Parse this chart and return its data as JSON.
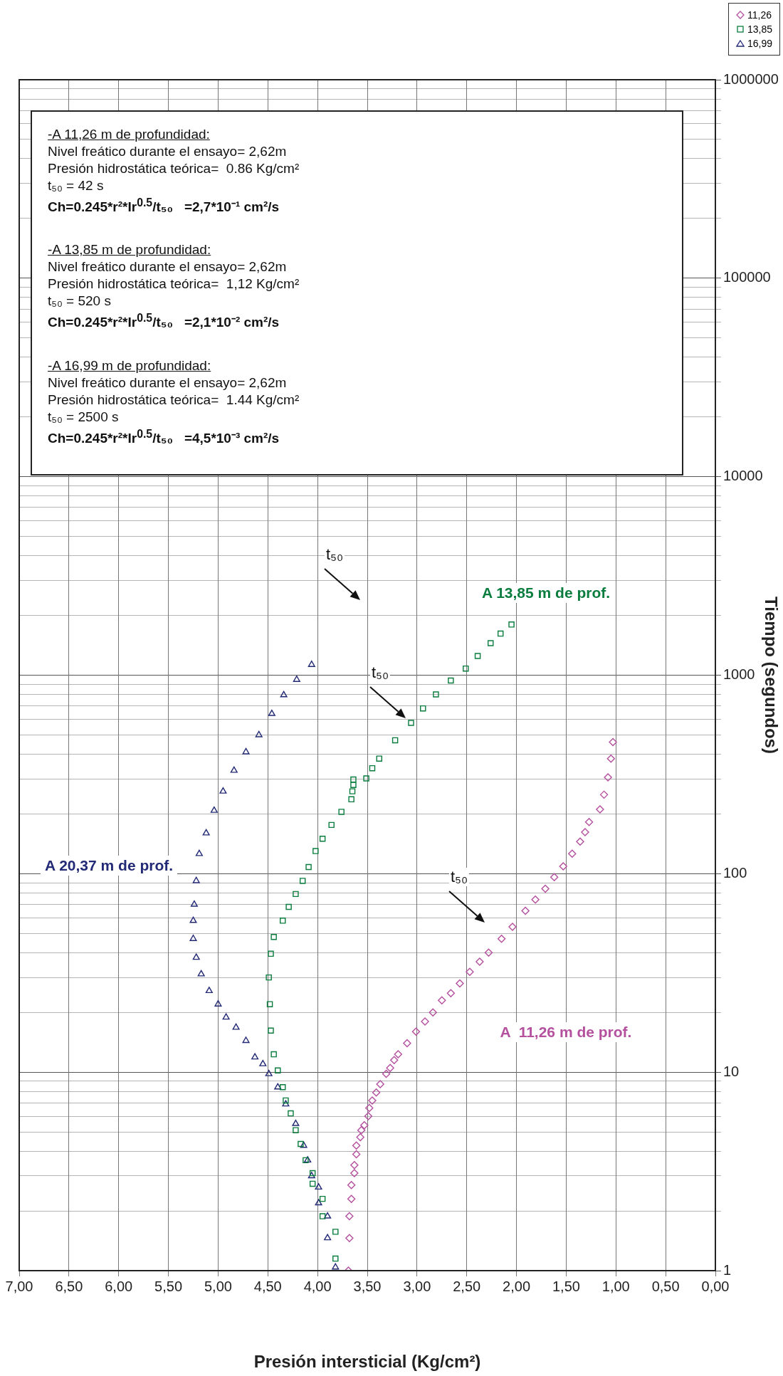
{
  "chart_data": {
    "type": "scatter",
    "xlabel": "Presión intersticial (Kg/cm²)",
    "ylabel": "Tiempo (segundos)",
    "log": "y",
    "xlim": [
      7,
      0
    ],
    "ylim": [
      1,
      1000000
    ],
    "xticks": [
      {
        "value": 0,
        "label": "0,00"
      },
      {
        "value": 0.5,
        "label": "0,50"
      },
      {
        "value": 1,
        "label": "1,00"
      },
      {
        "value": 1.5,
        "label": "1,50"
      },
      {
        "value": 2,
        "label": "2,00"
      },
      {
        "value": 2.5,
        "label": "2,50"
      },
      {
        "value": 3,
        "label": "3,00"
      },
      {
        "value": 3.5,
        "label": "3,50"
      },
      {
        "value": 4,
        "label": "4,00"
      },
      {
        "value": 4.5,
        "label": "4,50"
      },
      {
        "value": 5,
        "label": "5,00"
      },
      {
        "value": 5.5,
        "label": "5,50"
      },
      {
        "value": 6,
        "label": "6,00"
      },
      {
        "value": 6.5,
        "label": "6,50"
      },
      {
        "value": 7,
        "label": "7,00"
      }
    ],
    "yticks": [
      1,
      {
        "value": 2,
        "label": null
      },
      {
        "value": 3,
        "label": null
      },
      {
        "value": 4,
        "label": null
      },
      {
        "value": 5,
        "label": null
      },
      {
        "value": 6,
        "label": null
      },
      {
        "value": 7,
        "label": null
      },
      {
        "value": 8,
        "label": null
      },
      {
        "value": 9,
        "label": null
      },
      10,
      {
        "value": 20,
        "label": null
      },
      {
        "value": 30,
        "label": null
      },
      {
        "value": 40,
        "label": null
      },
      {
        "value": 50,
        "label": null
      },
      {
        "value": 60,
        "label": null
      },
      {
        "value": 70,
        "label": null
      },
      {
        "value": 80,
        "label": null
      },
      {
        "value": 90,
        "label": null
      },
      100,
      {
        "value": 200,
        "label": null
      },
      {
        "value": 300,
        "label": null
      },
      {
        "value": 400,
        "label": null
      },
      {
        "value": 500,
        "label": null
      },
      {
        "value": 600,
        "label": null
      },
      {
        "value": 700,
        "label": null
      },
      {
        "value": 800,
        "label": null
      },
      {
        "value": 900,
        "label": null
      },
      1000,
      {
        "value": 2000,
        "label": null
      },
      {
        "value": 3000,
        "label": null
      },
      {
        "value": 4000,
        "label": null
      },
      {
        "value": 5000,
        "label": null
      },
      {
        "value": 6000,
        "label": null
      },
      {
        "value": 7000,
        "label": null
      },
      {
        "value": 8000,
        "label": null
      },
      {
        "value": 9000,
        "label": null
      },
      10000,
      {
        "value": 20000,
        "label": null
      },
      {
        "value": 30000,
        "label": null
      },
      {
        "value": 40000,
        "label": null
      },
      {
        "value": 50000,
        "label": null
      },
      {
        "value": 60000,
        "label": null
      },
      {
        "value": 70000,
        "label": null
      },
      {
        "value": 80000,
        "label": null
      },
      {
        "value": 90000,
        "label": null
      },
      100000,
      {
        "value": 200000,
        "label": null
      },
      {
        "value": 300000,
        "label": null
      },
      {
        "value": 400000,
        "label": null
      },
      {
        "value": 500000,
        "label": null
      },
      {
        "value": 600000,
        "label": null
      },
      {
        "value": 700000,
        "label": null
      },
      {
        "value": 800000,
        "label": null
      },
      {
        "value": 900000,
        "label": null
      },
      1000000
    ],
    "grid": true,
    "legend": "top right",
    "series": [
      {
        "name": "11,26",
        "color": "#b4509e",
        "marker": "diamond",
        "x": [
          3.69,
          3.68,
          3.68,
          3.66,
          3.66,
          3.63,
          3.63,
          3.61,
          3.61,
          3.57,
          3.56,
          3.53,
          3.49,
          3.48,
          3.45,
          3.41,
          3.37,
          3.31,
          3.27,
          3.23,
          3.19,
          3.1,
          3.01,
          2.92,
          2.84,
          2.75,
          2.66,
          2.57,
          2.47,
          2.37,
          2.28,
          2.15,
          2.04,
          1.91,
          1.81,
          1.71,
          1.62,
          1.53,
          1.44,
          1.36,
          1.31,
          1.27,
          1.16,
          1.12,
          1.08,
          1.05,
          1.03
        ],
        "values": [
          1,
          1.46,
          1.88,
          2.3,
          2.7,
          3.1,
          3.4,
          3.86,
          4.27,
          4.7,
          5.1,
          5.4,
          6,
          6.6,
          7.2,
          7.9,
          8.7,
          9.8,
          10.5,
          11.5,
          12.3,
          14,
          16,
          18,
          20,
          23,
          25,
          28,
          32,
          36,
          40,
          47,
          54,
          65,
          74,
          84,
          96,
          109,
          126,
          145,
          162,
          182,
          211,
          250,
          306,
          380,
          460
        ]
      },
      {
        "name": "13,85",
        "color": "#0a7d3e",
        "marker": "square",
        "x": [
          3.82,
          3.82,
          3.95,
          3.95,
          4.05,
          4.05,
          4.12,
          4.17,
          4.22,
          4.27,
          4.32,
          4.35,
          4.4,
          4.44,
          4.47,
          4.48,
          4.49,
          4.47,
          4.44,
          4.35,
          4.29,
          4.22,
          4.15,
          4.09,
          4.02,
          3.95,
          3.86,
          3.76,
          3.66,
          3.65,
          3.64,
          3.64,
          3.51,
          3.45,
          3.38,
          3.22,
          3.06,
          2.94,
          2.81,
          2.66,
          2.51,
          2.39,
          2.26,
          2.16,
          2.05
        ],
        "values": [
          1.15,
          1.57,
          1.88,
          2.3,
          2.74,
          3.1,
          3.6,
          4.35,
          5.1,
          6.2,
          7.2,
          8.4,
          10.2,
          12.3,
          16.2,
          22,
          30,
          39.5,
          48,
          58,
          68,
          79,
          92,
          108,
          130,
          150,
          176,
          205,
          237,
          260,
          280,
          298,
          302,
          340,
          380,
          470,
          575,
          680,
          800,
          940,
          1080,
          1250,
          1450,
          1620,
          1800
        ]
      },
      {
        "name": "16,99",
        "color": "#232a75",
        "marker": "triangle",
        "x": [
          3.82,
          3.9,
          3.9,
          3.99,
          3.99,
          4.06,
          4.1,
          4.14,
          4.22,
          4.32,
          4.4,
          4.49,
          4.55,
          4.63,
          4.72,
          4.82,
          4.92,
          5,
          5.09,
          5.17,
          5.22,
          5.25,
          5.25,
          5.24,
          5.22,
          5.19,
          5.12,
          5.04,
          4.95,
          4.84,
          4.72,
          4.59,
          4.46,
          4.34,
          4.21,
          4.06
        ],
        "values": [
          1.04,
          1.46,
          1.88,
          2.19,
          2.63,
          3,
          3.6,
          4.27,
          5.5,
          6.9,
          8.4,
          9.8,
          11,
          11.9,
          14.4,
          16.8,
          18.9,
          22,
          25.7,
          31.2,
          37.8,
          47,
          58,
          70,
          92,
          126,
          160,
          208,
          260,
          331,
          410,
          500,
          640,
          795,
          950,
          1130
        ]
      }
    ],
    "annotations": [
      "-A 11,26 m de profundidad:",
      "Nivel freático durante el ensayo= 2,62m",
      "Presión hidrostática teórica=  0.86 Kg/cm²",
      "t₅₀ = 42 s",
      "Ch=0.245*r²*Ir$^{0.5}$/t₅₀   =2,7*10⁻¹ cm²/s",
      "-A 13,85 m de profundidad:",
      "Nivel freático durante el ensayo= 2,62m",
      "Presión hidrostática teórica=  1,12 Kg/cm²",
      "t₅₀ = 520 s",
      "Ch=0.245*r²*Ir$^{0.5}$/t₅₀   =2,1*10⁻² cm²/s",
      "-A 16,99 m de profundidad:",
      "Nivel freático durante el ensayo= 2,62m",
      "Presión hidrostática teórica=  1.44 Kg/cm²",
      "t₅₀ = 2500 s",
      "Ch=0.245*r²*Ir$^{0.5}$/t₅₀   =4,5*10⁻³ cm²/s",
      "t₅₀",
      "t₅₀",
      "t₅₀",
      "A  11,26 m de prof.",
      "A 13,85 m de prof.",
      "A 20,37 m de prof."
    ]
  }
}
